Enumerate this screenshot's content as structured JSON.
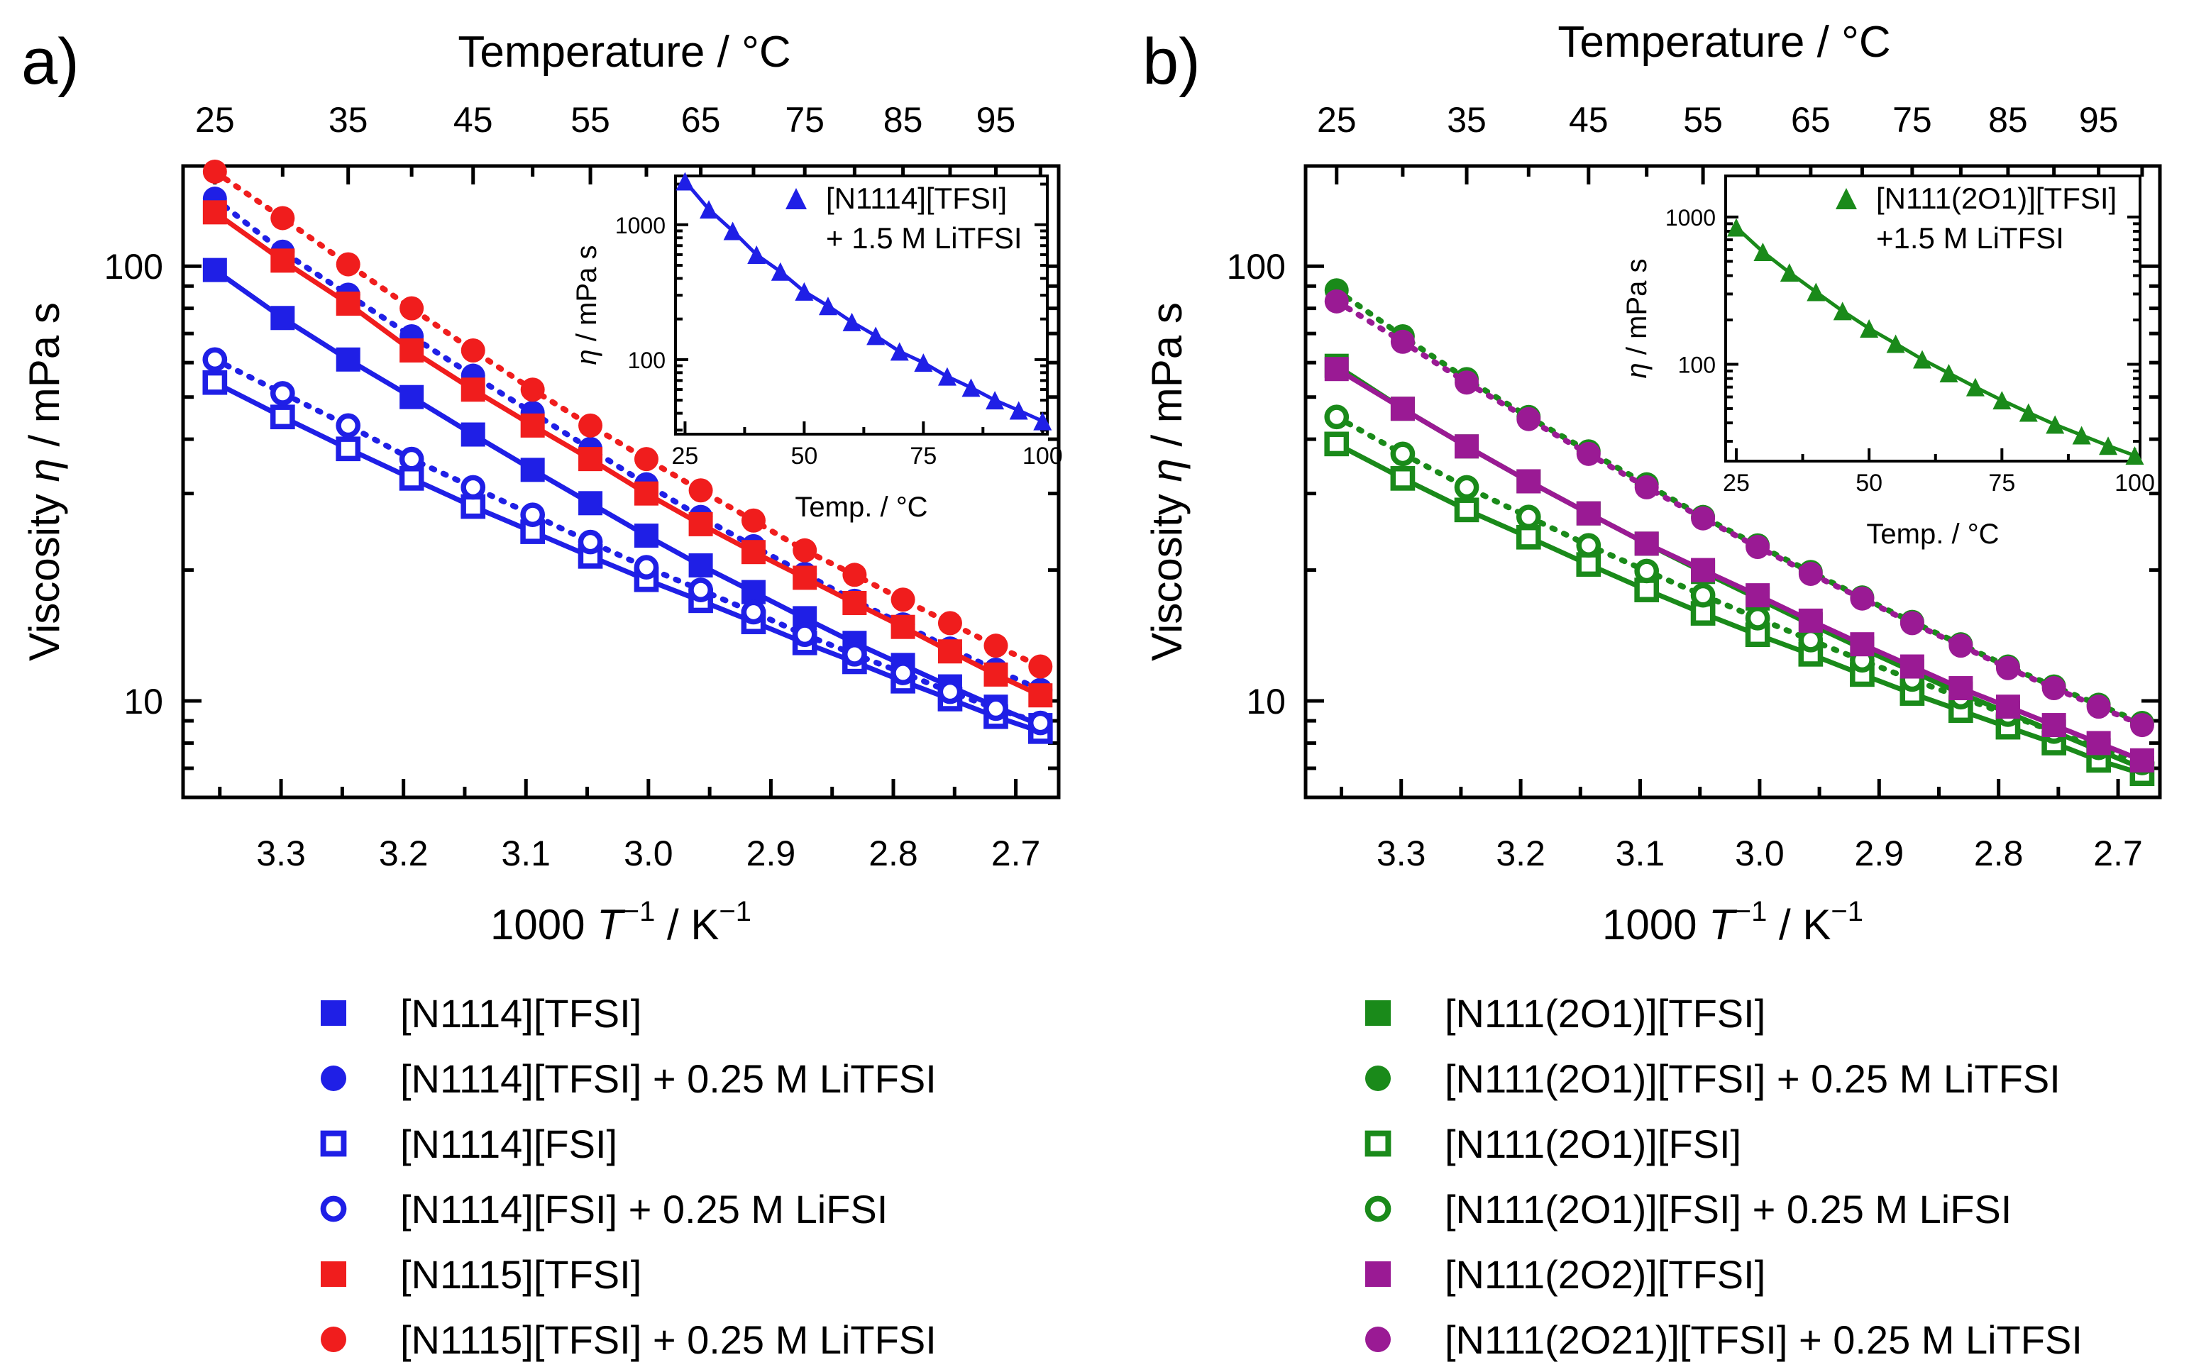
{
  "chart_data": [
    {
      "type": "scatter",
      "panel_label": "a)",
      "xlabel_prefix": "1000 ",
      "xlabel_var": "T",
      "xlabel_exp": "−1",
      "xlabel_suffix": " / K",
      "xlabel_unit_exp": "−1",
      "ylabel_text": "Viscosity ",
      "ylabel_var": "η",
      "ylabel_unit": " / mPa s",
      "top_axis_label": "Temperature / °C",
      "top_ticks": [
        "25",
        "35",
        "45",
        "55",
        "65",
        "75",
        "85",
        "95"
      ],
      "x_ticks": [
        "3.3",
        "3.2",
        "3.1",
        "3.0",
        "2.9",
        "2.8",
        "2.7"
      ],
      "y_ticks": [
        "10",
        "100"
      ],
      "xlim": [
        3.38,
        2.665
      ],
      "ylim": [
        6.0,
        170
      ],
      "temperatures_C": [
        25,
        30,
        35,
        40,
        45,
        50,
        55,
        60,
        65,
        70,
        75,
        80,
        85,
        90,
        95,
        100
      ],
      "series": [
        {
          "name": "[N1114][TFSI]",
          "marker": "square",
          "filled": true,
          "color": "#1f1fe6",
          "line": "solid",
          "values": [
            98,
            76,
            61,
            50,
            41,
            34,
            28.5,
            24,
            20.5,
            17.8,
            15.5,
            13.6,
            12.1,
            10.8,
            9.7,
            8.8
          ]
        },
        {
          "name": "[N1114][TFSI] + 0.25 M LiTFSI",
          "marker": "circle",
          "filled": true,
          "color": "#1f1fe6",
          "line": "dotted",
          "values": [
            143,
            108,
            86,
            69,
            56,
            46,
            38,
            31.5,
            26.5,
            22.7,
            19.6,
            17.0,
            15.0,
            13.2,
            11.8,
            10.6
          ]
        },
        {
          "name": "[N1114][FSI]",
          "marker": "square",
          "filled": false,
          "color": "#1f1fe6",
          "line": "solid",
          "values": [
            54,
            45,
            38,
            32.5,
            28,
            24.5,
            21.5,
            19,
            17,
            15.2,
            13.6,
            12.3,
            11.1,
            10.1,
            9.2,
            8.5
          ]
        },
        {
          "name": "[N1114][FSI] + 0.25 M LiFSI",
          "marker": "circle",
          "filled": false,
          "color": "#1f1fe6",
          "line": "dotted",
          "values": [
            61,
            51,
            43,
            36,
            31,
            26.8,
            23.2,
            20.3,
            18,
            16,
            14.2,
            12.8,
            11.6,
            10.5,
            9.6,
            8.9
          ]
        },
        {
          "name": "[N1115][TFSI]",
          "marker": "square",
          "filled": true,
          "color": "#f01d1d",
          "line": "solid",
          "values": [
            133,
            103,
            82,
            64,
            52,
            43,
            36,
            30,
            25.5,
            22,
            19.2,
            16.8,
            14.8,
            13,
            11.5,
            10.3
          ]
        },
        {
          "name": "[N1115][TFSI] + 0.25 M LiTFSI",
          "marker": "circle",
          "filled": true,
          "color": "#f01d1d",
          "line": "dotted",
          "values": [
            165,
            129,
            101,
            80,
            64,
            52,
            43,
            36,
            30.5,
            26,
            22.2,
            19.5,
            17.1,
            15.1,
            13.4,
            12
          ]
        }
      ],
      "inset": {
        "legend_line1": "[N1114][TFSI]",
        "legend_line2": "+ 1.5 M LiTFSI",
        "xlabel": "Temp. / °C",
        "ylabel_var": "η",
        "ylabel_unit": " / mPa s",
        "x_ticks": [
          "25",
          "50",
          "75",
          "100"
        ],
        "y_ticks": [
          "100",
          "1000"
        ],
        "xlim": [
          23,
          101
        ],
        "ylim": [
          28,
          2300
        ],
        "color": "#1f1fe6",
        "x": [
          25,
          30,
          35,
          40,
          45,
          50,
          55,
          60,
          65,
          70,
          75,
          80,
          85,
          90,
          95,
          100
        ],
        "values": [
          2100,
          1300,
          900,
          600,
          450,
          320,
          250,
          190,
          150,
          115,
          95,
          75,
          62,
          50,
          42,
          35
        ]
      }
    },
    {
      "type": "scatter",
      "panel_label": "b)",
      "xlabel_prefix": "1000 ",
      "xlabel_var": "T",
      "xlabel_exp": "−1",
      "xlabel_suffix": " / K",
      "xlabel_unit_exp": "−1",
      "ylabel_text": "Viscosity ",
      "ylabel_var": "η",
      "ylabel_unit": " / mPa s",
      "top_axis_label": "Temperature / °C",
      "top_ticks": [
        "25",
        "35",
        "45",
        "55",
        "65",
        "75",
        "85",
        "95"
      ],
      "x_ticks": [
        "3.3",
        "3.2",
        "3.1",
        "3.0",
        "2.9",
        "2.8",
        "2.7"
      ],
      "y_ticks": [
        "10",
        "100"
      ],
      "xlim": [
        3.38,
        2.665
      ],
      "ylim": [
        6.0,
        170
      ],
      "temperatures_C": [
        25,
        30,
        35,
        40,
        45,
        50,
        55,
        60,
        65,
        70,
        75,
        80,
        85,
        90,
        95,
        100
      ],
      "series": [
        {
          "name": "[N111(2O1)][TFSI]",
          "marker": "square",
          "filled": true,
          "color": "#1a8a1a",
          "line": "solid",
          "values": [
            59,
            47,
            38.5,
            32,
            27,
            23,
            19.8,
            17.2,
            15,
            13.2,
            11.7,
            10.4,
            9.4,
            8.5,
            7.7,
            7.0
          ]
        },
        {
          "name": "[N111(2O1)][TFSI] + 0.25 M LiTFSI",
          "marker": "circle",
          "filled": true,
          "color": "#1a8a1a",
          "line": "dotted",
          "values": [
            88,
            69,
            55,
            45,
            37.5,
            31.5,
            26.5,
            22.8,
            19.8,
            17.3,
            15.2,
            13.5,
            12.0,
            10.8,
            9.8,
            8.9
          ]
        },
        {
          "name": "[N111(2O1)][FSI]",
          "marker": "square",
          "filled": false,
          "color": "#1a8a1a",
          "line": "solid",
          "values": [
            39,
            32.5,
            27.5,
            23.8,
            20.6,
            18,
            15.9,
            14.2,
            12.8,
            11.5,
            10.4,
            9.5,
            8.7,
            8.0,
            7.3,
            6.8
          ]
        },
        {
          "name": "[N111(2O1)][FSI] + 0.25 M LiFSI",
          "marker": "circle",
          "filled": false,
          "color": "#1a8a1a",
          "line": "dotted",
          "values": [
            45,
            37,
            31,
            26.5,
            22.8,
            19.9,
            17.5,
            15.5,
            13.8,
            12.4,
            11.2,
            10.2,
            9.3,
            8.5,
            7.8,
            7.2
          ]
        },
        {
          "name": "[N111(2O2)][TFSI]",
          "marker": "square",
          "filled": true,
          "color": "#9a1a94",
          "line": "solid",
          "values": [
            58,
            47,
            38.5,
            32,
            27,
            23,
            20,
            17.5,
            15.3,
            13.5,
            12,
            10.7,
            9.7,
            8.8,
            8.0,
            7.3
          ]
        },
        {
          "name": "[N111(2O21)][TFSI] + 0.25 M LiTFSI",
          "marker": "circle",
          "filled": true,
          "color": "#9a1a94",
          "line": "dotted",
          "values": [
            83,
            67,
            54,
            44.5,
            37,
            31,
            26.3,
            22.6,
            19.6,
            17.2,
            15.1,
            13.4,
            11.9,
            10.7,
            9.7,
            8.8
          ]
        }
      ],
      "inset": {
        "legend_line1": "[N111(2O1)][TFSI]",
        "legend_line2": "+1.5 M LiTFSI",
        "xlabel": "Temp. / °C",
        "ylabel_var": "η",
        "ylabel_unit": " / mPa s",
        "x_ticks": [
          "25",
          "50",
          "75",
          "100"
        ],
        "y_ticks": [
          "100",
          "1000"
        ],
        "xlim": [
          23,
          101
        ],
        "ylim": [
          22,
          1900
        ],
        "color": "#1a8a1a",
        "x": [
          25,
          30,
          35,
          40,
          45,
          50,
          55,
          60,
          65,
          70,
          75,
          80,
          85,
          90,
          95,
          100
        ],
        "values": [
          850,
          580,
          420,
          310,
          230,
          175,
          138,
          108,
          87,
          70,
          57,
          47,
          39,
          33,
          28,
          24
        ]
      }
    }
  ]
}
